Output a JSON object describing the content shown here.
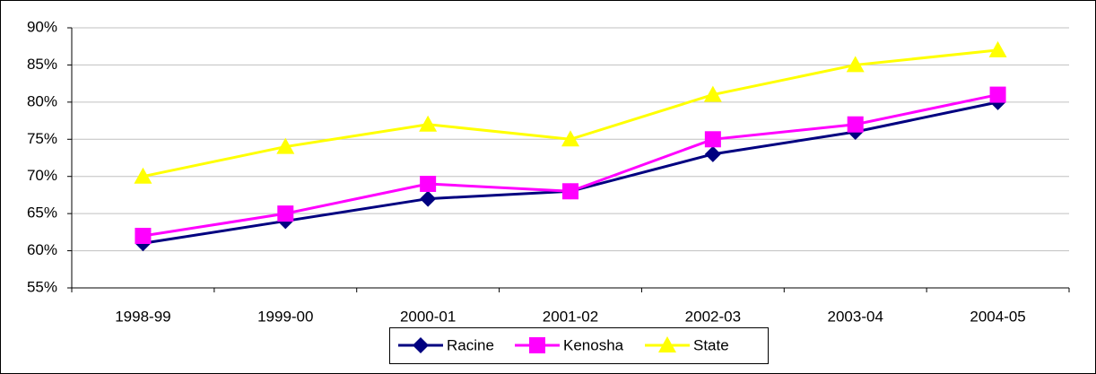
{
  "chart_data": {
    "type": "line",
    "categories": [
      "1998-99",
      "1999-00",
      "2000-01",
      "2001-02",
      "2002-03",
      "2003-04",
      "2004-05"
    ],
    "series": [
      {
        "name": "Racine",
        "color": "#000080",
        "marker": "diamond",
        "values": [
          61,
          64,
          67,
          68,
          73,
          76,
          80
        ]
      },
      {
        "name": "Kenosha",
        "color": "#ff00ff",
        "marker": "square",
        "values": [
          62,
          65,
          69,
          68,
          75,
          77,
          81
        ]
      },
      {
        "name": "State",
        "color": "#ffff00",
        "marker": "triangle",
        "values": [
          70,
          74,
          77,
          75,
          81,
          85,
          87
        ]
      }
    ],
    "ylim": [
      55,
      90
    ],
    "yticks": [
      {
        "value": 55,
        "label": "55%"
      },
      {
        "value": 60,
        "label": "60%"
      },
      {
        "value": 65,
        "label": "65%"
      },
      {
        "value": 70,
        "label": "70%"
      },
      {
        "value": 75,
        "label": "75%"
      },
      {
        "value": 80,
        "label": "80%"
      },
      {
        "value": 85,
        "label": "85%"
      },
      {
        "value": 90,
        "label": "90%"
      }
    ],
    "grid": true,
    "legend": "bottom"
  }
}
